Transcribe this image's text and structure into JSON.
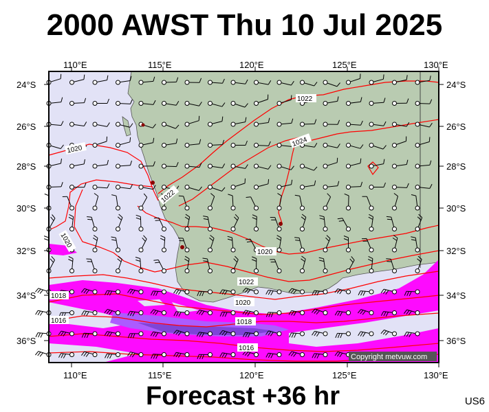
{
  "title": "2000 AWST Thu 10 Jul 2025",
  "footer": "Forecast +36 hr",
  "code": "US6",
  "copyright": "Copyright metvuw.com",
  "longitude_labels": [
    "110°E",
    "115°E",
    "120°E",
    "125°E",
    "130°E"
  ],
  "latitude_labels": [
    "24°S",
    "26°S",
    "28°S",
    "30°S",
    "32°S",
    "34°S",
    "36°S"
  ],
  "isobar_labels": [
    "1022",
    "1024",
    "1020",
    "1022",
    "1020",
    "1022",
    "1020",
    "1018",
    "1016",
    "1018",
    "1016"
  ],
  "colors": {
    "sea": "#e2e2f6",
    "land": "#b9cbb1",
    "isobar": "#ff0000",
    "rain_light": "#ff00ff",
    "rain_medium": "#aa55ff",
    "rain_heavy": "#7a3dd6"
  }
}
